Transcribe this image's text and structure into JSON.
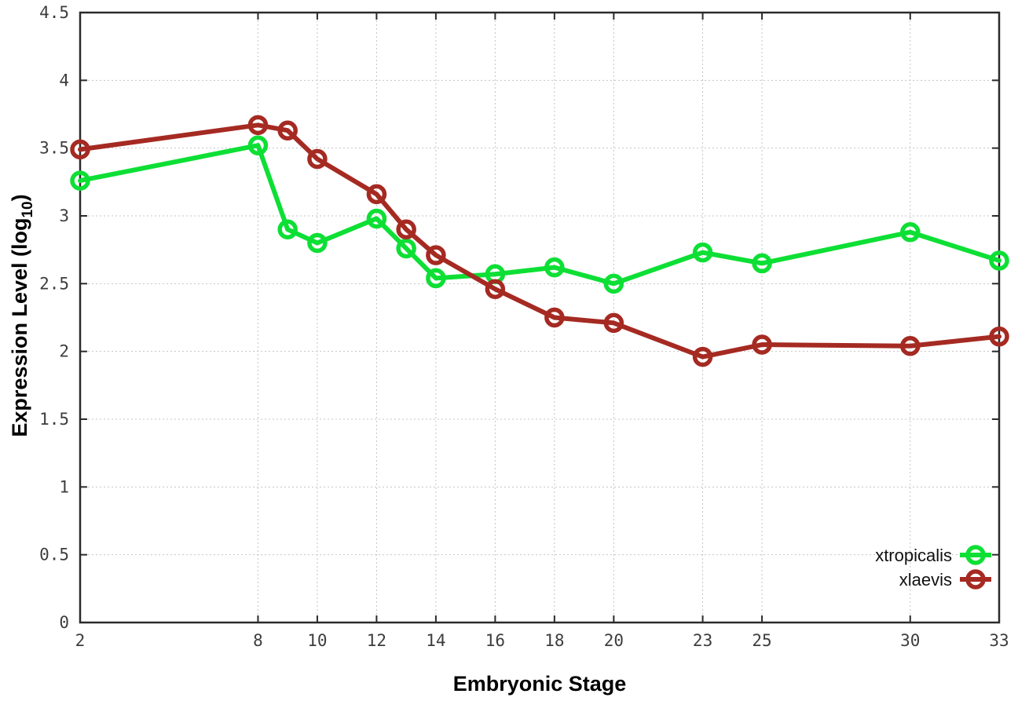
{
  "chart_data": {
    "type": "line",
    "title": "",
    "xlabel": "Embryonic Stage",
    "ylabel_parts": {
      "main": "Expression Level (log",
      "sub": "10",
      "end": ")"
    },
    "x": [
      2,
      8,
      9,
      10,
      12,
      13,
      14,
      16,
      18,
      20,
      23,
      25,
      30,
      33
    ],
    "series": [
      {
        "name": "xtropicalis",
        "color": "#0ddf35",
        "values": [
          3.26,
          3.52,
          2.9,
          2.8,
          2.98,
          2.76,
          2.54,
          2.57,
          2.62,
          2.5,
          2.73,
          2.65,
          2.88,
          2.67
        ]
      },
      {
        "name": "xlaevis",
        "color": "#a52a22",
        "values": [
          3.49,
          3.67,
          3.63,
          3.42,
          3.16,
          2.9,
          2.71,
          2.46,
          2.25,
          2.21,
          1.96,
          2.05,
          2.04,
          2.11
        ]
      }
    ],
    "x_ticks": [
      2,
      8,
      10,
      12,
      14,
      16,
      18,
      20,
      23,
      25,
      30,
      33
    ],
    "y_ticks": [
      0,
      0.5,
      1,
      1.5,
      2,
      2.5,
      3,
      3.5,
      4,
      4.5
    ],
    "y_tick_labels": [
      "0",
      "0.5",
      "1",
      "1.5",
      "2",
      "2.5",
      "3",
      "3.5",
      "4",
      "4.5"
    ],
    "xlim": [
      2,
      33
    ],
    "ylim": [
      0,
      4.5
    ],
    "grid": true,
    "legend_position": "bottom-right",
    "legend_entries": [
      "xtropicalis",
      "xlaevis"
    ]
  },
  "style": {
    "border_color": "#2b2b2b",
    "grid_color": "#c4c4c4",
    "tick_label_color": "#3d3d3d",
    "background": "#ffffff"
  }
}
